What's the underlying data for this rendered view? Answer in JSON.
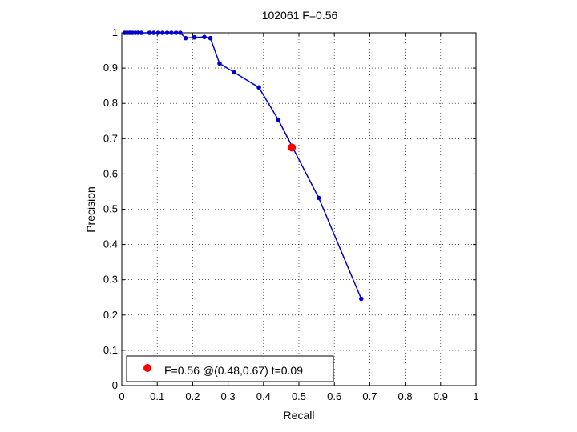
{
  "chart_data": {
    "type": "line",
    "title": "102061 F=0.56",
    "xlabel": "Recall",
    "ylabel": "Precision",
    "xlim": [
      0,
      1
    ],
    "ylim": [
      0,
      1
    ],
    "grid": true,
    "legend_placement": "bottom-left",
    "xticks": [
      "0",
      "0.1",
      "0.2",
      "0.3",
      "0.4",
      "0.5",
      "0.6",
      "0.7",
      "0.8",
      "0.9",
      "1"
    ],
    "yticks": [
      "0",
      "0.1",
      "0.2",
      "0.3",
      "0.4",
      "0.5",
      "0.6",
      "0.7",
      "0.8",
      "0.9",
      "1"
    ],
    "series": [
      {
        "color": "#0000cc",
        "points": [
          [
            0.008,
            1.0
          ],
          [
            0.015,
            1.0
          ],
          [
            0.022,
            1.0
          ],
          [
            0.03,
            1.0
          ],
          [
            0.038,
            1.0
          ],
          [
            0.046,
            1.0
          ],
          [
            0.055,
            1.0
          ],
          [
            0.078,
            1.0
          ],
          [
            0.09,
            1.0
          ],
          [
            0.103,
            1.0
          ],
          [
            0.115,
            1.0
          ],
          [
            0.128,
            1.0
          ],
          [
            0.14,
            1.0
          ],
          [
            0.153,
            1.0
          ],
          [
            0.165,
            1.0
          ],
          [
            0.18,
            0.985
          ],
          [
            0.205,
            0.987
          ],
          [
            0.233,
            0.988
          ],
          [
            0.25,
            0.985
          ],
          [
            0.276,
            0.913
          ],
          [
            0.317,
            0.888
          ],
          [
            0.387,
            0.845
          ],
          [
            0.442,
            0.753
          ],
          [
            0.556,
            0.532
          ],
          [
            0.676,
            0.246
          ]
        ]
      }
    ],
    "highlight": {
      "x": 0.48,
      "y": 0.675,
      "color": "#ff0000"
    },
    "legend": {
      "text": "F=0.56 @(0.48,0.67) t=0.09",
      "marker_color": "#ff0000"
    }
  }
}
